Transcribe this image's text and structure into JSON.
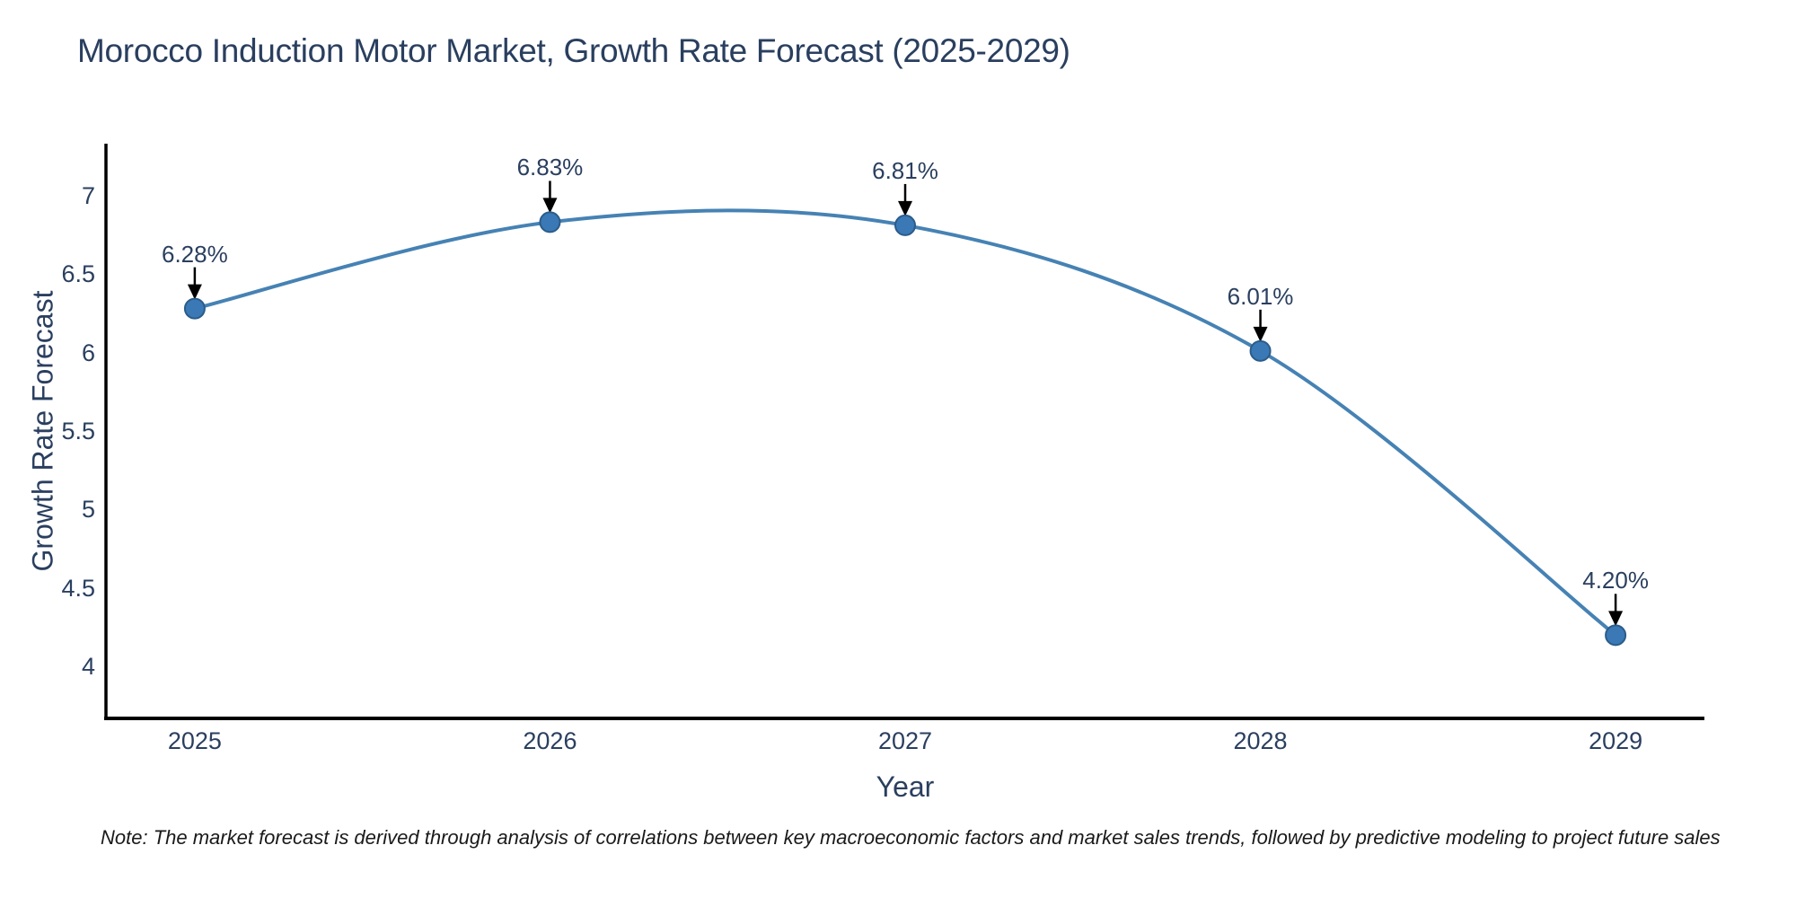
{
  "note": "Note: The market forecast is derived through analysis of correlations between key macroeconomic factors and market sales trends, followed by predictive modeling to project future sales",
  "chart_data": {
    "type": "line",
    "title": "Morocco Induction Motor Market, Growth Rate Forecast (2025-2029)",
    "xlabel": "Year",
    "ylabel": "Growth Rate Forecast",
    "x": [
      2025,
      2026,
      2027,
      2028,
      2029
    ],
    "values": [
      6.28,
      6.83,
      6.81,
      6.01,
      4.2
    ],
    "point_labels": [
      "6.28%",
      "6.83%",
      "6.81%",
      "6.01%",
      "4.20%"
    ],
    "series_name": "Growth Rate Forecast",
    "line_shape": "spline",
    "grid": false,
    "legend": "none",
    "xtick_labels": [
      "2025",
      "2026",
      "2027",
      "2028",
      "2029"
    ],
    "ytick_values": [
      4,
      4.5,
      5,
      5.5,
      6,
      6.5,
      7
    ],
    "ytick_labels": [
      "4",
      "4.5",
      "5",
      "5.5",
      "6",
      "6.5",
      "7"
    ],
    "xlim": [
      2024.75,
      2029.25
    ],
    "ylim": [
      3.67,
      7.33
    ],
    "colors": {
      "line": "#4682b4",
      "marker_fill": "#3a79b5",
      "marker_edge": "#2b5c8a",
      "arrow": "#000000",
      "text": "#2a3f5f",
      "axis": "#000000",
      "background": "#ffffff"
    }
  }
}
